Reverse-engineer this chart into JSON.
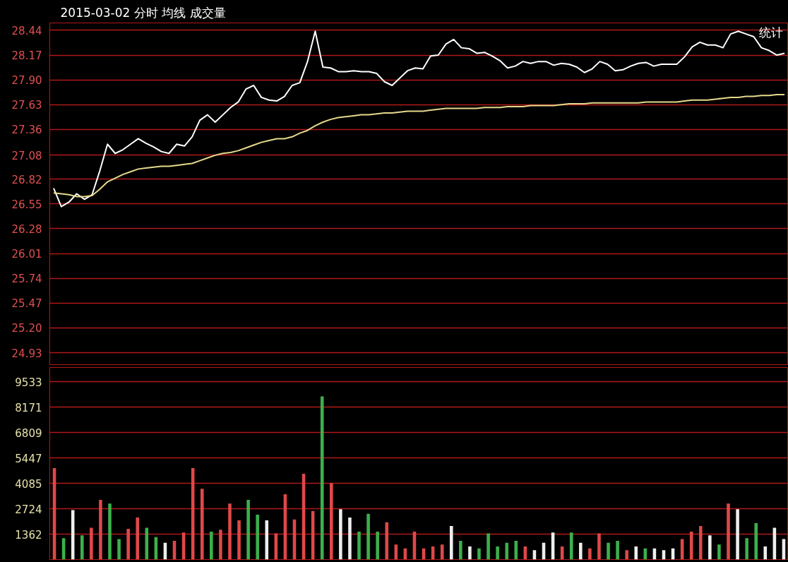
{
  "chart_data": [
    {
      "type": "line",
      "title": "2015-03-02 分时 均线 成交量",
      "annotations": [
        "统计"
      ],
      "categories": [
        null,
        null,
        null,
        null,
        null,
        null,
        null,
        null,
        null,
        null,
        null,
        null,
        null,
        null,
        null,
        null,
        null,
        null,
        null,
        null,
        null,
        null,
        null,
        null,
        null,
        null,
        null,
        null,
        null,
        null,
        null,
        null,
        null,
        null,
        null,
        null,
        null,
        null,
        null,
        null,
        null,
        null,
        null,
        null,
        null,
        null,
        null,
        null,
        null,
        null,
        null,
        null,
        null,
        null,
        null,
        null,
        null,
        null,
        null,
        null,
        null,
        null,
        null,
        null,
        null,
        null,
        null,
        null,
        null,
        null,
        null,
        null,
        null,
        null,
        null,
        null,
        null,
        null,
        null,
        null,
        null,
        null,
        null,
        null,
        null,
        null,
        null,
        null,
        null,
        null,
        null,
        null,
        null,
        null,
        null,
        null
      ],
      "series": [
        {
          "color": "#ffffff",
          "values": [
            26.72,
            26.52,
            26.57,
            26.66,
            26.6,
            26.65,
            26.91,
            27.2,
            27.1,
            27.14,
            27.2,
            27.26,
            27.21,
            27.17,
            27.12,
            27.1,
            27.2,
            27.18,
            27.28,
            27.46,
            27.52,
            27.44,
            27.52,
            27.6,
            27.66,
            27.8,
            27.84,
            27.71,
            27.68,
            27.67,
            27.72,
            27.84,
            27.87,
            28.1,
            28.43,
            28.04,
            28.03,
            27.99,
            27.99,
            28.0,
            27.99,
            27.99,
            27.97,
            27.88,
            27.84,
            27.92,
            28.0,
            28.03,
            28.02,
            28.16,
            28.17,
            28.29,
            28.34,
            28.25,
            28.24,
            28.19,
            28.2,
            28.16,
            28.11,
            28.03,
            28.05,
            28.1,
            28.08,
            28.1,
            28.1,
            28.06,
            28.08,
            28.07,
            28.04,
            27.98,
            28.02,
            28.1,
            28.07,
            28.0,
            28.01,
            28.05,
            28.08,
            28.09,
            28.05,
            28.07,
            28.07,
            28.07,
            28.15,
            28.26,
            28.31,
            28.28,
            28.28,
            28.25,
            28.4,
            28.43,
            28.4,
            28.37,
            28.25,
            28.22,
            28.17,
            28.19
          ]
        },
        {
          "color": "#e6d98c",
          "values": [
            26.67,
            26.66,
            26.65,
            26.63,
            26.63,
            26.64,
            26.71,
            26.79,
            26.83,
            26.87,
            26.9,
            26.93,
            26.94,
            26.95,
            26.96,
            26.96,
            26.97,
            26.98,
            26.99,
            27.02,
            27.05,
            27.08,
            27.1,
            27.11,
            27.13,
            27.16,
            27.19,
            27.22,
            27.24,
            27.26,
            27.26,
            27.28,
            27.32,
            27.35,
            27.4,
            27.44,
            27.47,
            27.49,
            27.5,
            27.51,
            27.52,
            27.52,
            27.53,
            27.54,
            27.54,
            27.55,
            27.56,
            27.56,
            27.56,
            27.57,
            27.58,
            27.59,
            27.59,
            27.59,
            27.59,
            27.59,
            27.6,
            27.6,
            27.6,
            27.61,
            27.61,
            27.61,
            27.62,
            27.62,
            27.62,
            27.62,
            27.63,
            27.64,
            27.64,
            27.64,
            27.65,
            27.65,
            27.65,
            27.65,
            27.65,
            27.65,
            27.65,
            27.66,
            27.66,
            27.66,
            27.66,
            27.66,
            27.67,
            27.68,
            27.68,
            27.68,
            27.69,
            27.7,
            27.71,
            27.71,
            27.72,
            27.72,
            27.73,
            27.73,
            27.74,
            27.74
          ]
        }
      ],
      "ylim": [
        24.8,
        28.52
      ],
      "yticks": [
        28.44,
        28.17,
        {
          "value": 27.9,
          "label": "27.90"
        },
        27.63,
        27.36,
        27.08,
        26.82,
        26.55,
        26.28,
        26.01,
        25.74,
        25.47,
        {
          "value": 25.2,
          "label": "25.20"
        },
        24.93
      ],
      "grid": "y",
      "tick_labels": "y"
    },
    {
      "type": "bar",
      "categories": [
        null,
        null,
        null,
        null,
        null,
        null,
        null,
        null,
        null,
        null,
        null,
        null,
        null,
        null,
        null,
        null,
        null,
        null,
        null,
        null,
        null,
        null,
        null,
        null,
        null,
        null,
        null,
        null,
        null,
        null,
        null,
        null,
        null,
        null,
        null,
        null,
        null,
        null,
        null,
        null,
        null,
        null,
        null,
        null,
        null,
        null,
        null,
        null,
        null,
        null,
        null,
        null,
        null,
        null,
        null,
        null,
        null,
        null,
        null,
        null,
        null,
        null,
        null,
        null,
        null,
        null,
        null,
        null,
        null,
        null,
        null,
        null,
        null,
        null,
        null,
        null,
        null,
        null,
        null,
        null
      ],
      "values": [
        4900,
        1150,
        2650,
        1300,
        1700,
        3200,
        3000,
        1100,
        1650,
        2250,
        1700,
        1200,
        900,
        1000,
        1450,
        4900,
        3800,
        1500,
        1600,
        3000,
        2100,
        3200,
        2400,
        2100,
        1400,
        3500,
        2150,
        4600,
        2600,
        8750,
        4100,
        2700,
        2250,
        1500,
        2450,
        1500,
        2000,
        800,
        600,
        1500,
        600,
        700,
        800,
        1800,
        1000,
        700,
        600,
        1400,
        700,
        900,
        1000,
        700,
        500,
        900,
        1450,
        700,
        1450,
        900,
        600,
        1400,
        900,
        1000,
        500,
        700,
        600,
        600,
        500,
        600,
        1100,
        1500,
        1800,
        1300,
        800,
        3000,
        2700,
        1150,
        1950,
        700,
        1700,
        1100
      ],
      "colors": [
        "#e04848",
        "#3cb04c",
        "#eeeeee",
        "#3cb04c",
        "#e04848",
        "#e04848",
        "#3cb04c",
        "#3cb04c",
        "#e04848",
        "#e04848",
        "#3cb04c",
        "#3cb04c",
        "#eeeeee",
        "#e04848",
        "#e04848",
        "#e04848",
        "#e04848",
        "#3cb04c",
        "#e04848",
        "#e04848",
        "#e04848",
        "#3cb04c",
        "#3cb04c",
        "#eeeeee",
        "#e04848",
        "#e04848",
        "#e04848",
        "#e04848",
        "#e04848",
        "#3cb04c",
        "#e04848",
        "#eeeeee",
        "#eeeeee",
        "#3cb04c",
        "#3cb04c",
        "#3cb04c",
        "#e04848",
        "#e04848",
        "#e04848",
        "#e04848",
        "#e04848",
        "#e04848",
        "#e04848",
        "#eeeeee",
        "#3cb04c",
        "#eeeeee",
        "#3cb04c",
        "#3cb04c",
        "#3cb04c",
        "#3cb04c",
        "#3cb04c",
        "#e04848",
        "#eeeeee",
        "#eeeeee",
        "#eeeeee",
        "#e04848",
        "#3cb04c",
        "#eeeeee",
        "#e04848",
        "#e04848",
        "#3cb04c",
        "#3cb04c",
        "#e04848",
        "#eeeeee",
        "#3cb04c",
        "#eeeeee",
        "#eeeeee",
        "#eeeeee",
        "#e04848",
        "#e04848",
        "#e04848",
        "#eeeeee",
        "#3cb04c",
        "#e04848",
        "#eeeeee",
        "#3cb04c",
        "#3cb04c",
        "#eeeeee",
        "#eeeeee",
        "#eeeeee"
      ],
      "ylim": [
        0,
        10300
      ],
      "yticks": [
        1362,
        2724,
        4085,
        5447,
        6809,
        8171,
        9533
      ],
      "grid": "y",
      "tick_labels": "y"
    }
  ]
}
